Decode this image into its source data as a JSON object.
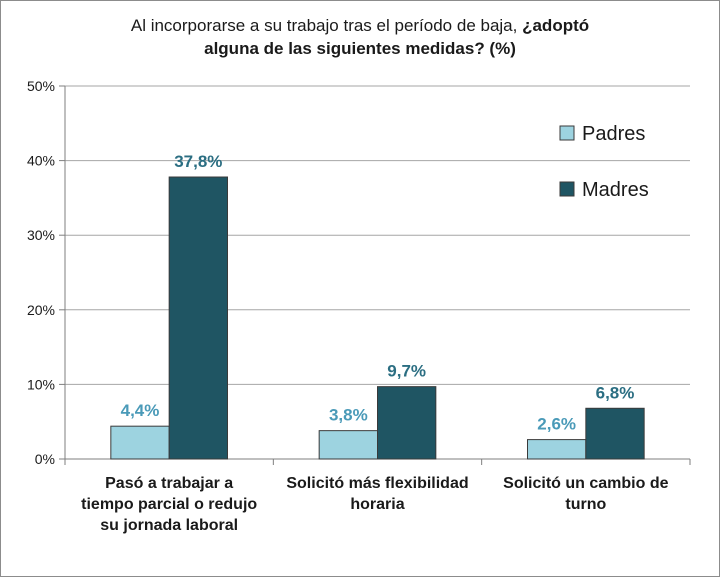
{
  "chart_data": {
    "type": "bar",
    "title_regular": "Al incorporarse a su trabajo tras el período de baja, ",
    "title_bold_1": "¿adoptó",
    "title_bold_2": "alguna de las siguientes medidas?  (%)",
    "categories": [
      [
        "Pasó a trabajar a",
        "tiempo parcial o redujo",
        "su jornada laboral"
      ],
      [
        "Solicitó más flexibilidad",
        "horaria"
      ],
      [
        "Solicitó un cambio de",
        "turno"
      ]
    ],
    "series": [
      {
        "name": "Padres",
        "values": [
          4.4,
          3.8,
          2.6
        ],
        "labels": [
          "4,4%",
          "3,8%",
          "2,6%"
        ],
        "color": "#9dd3e0",
        "label_color": "#4a9ab8"
      },
      {
        "name": "Madres",
        "values": [
          37.8,
          9.7,
          6.8
        ],
        "labels": [
          "37,8%",
          "9,7%",
          "6,8%"
        ],
        "color": "#1f5563",
        "label_color": "#2b6e82"
      }
    ],
    "ylim": [
      0,
      50
    ],
    "yticks": [
      0,
      10,
      20,
      30,
      40,
      50
    ],
    "ytick_labels": [
      "0%",
      "10%",
      "20%",
      "30%",
      "40%",
      "50%"
    ],
    "grid": true,
    "legend_position": "top-right"
  }
}
